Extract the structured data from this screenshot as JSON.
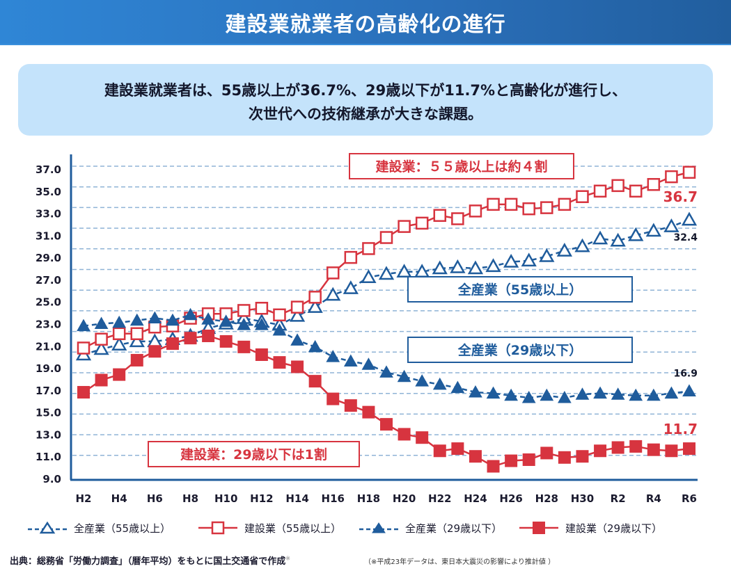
{
  "header": {
    "title": "建設業就業者の高齢化の進行"
  },
  "summary": {
    "line1": "建設業就業者は、55歳以上が36.7%、29歳以下が11.7%と高齢化が進行し、",
    "line2": "次世代への技術継承が大きな課題。"
  },
  "colors": {
    "red": "#d7343f",
    "blue": "#1f5c9c",
    "grid": "#8fb3d6",
    "header": "#2a72be",
    "info_bg": "#c4e3fb"
  },
  "chart_data": {
    "type": "line",
    "title": "建設業就業者の高齢化の進行",
    "xlabel": "",
    "ylabel": "",
    "ylim": [
      9.0,
      37.0
    ],
    "y_ticks": [
      "37.0",
      "35.0",
      "33.0",
      "31.0",
      "29.0",
      "27.0",
      "25.0",
      "23.0",
      "21.0",
      "19.0",
      "17.0",
      "15.0",
      "13.0",
      "11.0",
      "9.0"
    ],
    "grid": true,
    "legend_position": "bottom",
    "x": [
      "H2",
      "H3",
      "H4",
      "H5",
      "H6",
      "H7",
      "H8",
      "H9",
      "H10",
      "H11",
      "H12",
      "H13",
      "H14",
      "H15",
      "H16",
      "H17",
      "H18",
      "H19",
      "H20",
      "H21",
      "H22",
      "H23",
      "H24",
      "H25",
      "H26",
      "H27",
      "H28",
      "H29",
      "H30",
      "R1",
      "R2",
      "R3",
      "R4",
      "R5",
      "R6"
    ],
    "x_tick_labels": [
      "H2",
      "H4",
      "H6",
      "H8",
      "H10",
      "H12",
      "H14",
      "H16",
      "H18",
      "H20",
      "H22",
      "H24",
      "H26",
      "H28",
      "H30",
      "R2",
      "R4",
      "R6"
    ],
    "series": [
      {
        "name": "全産業（55歳以上）",
        "style": "dashed-open-triangle",
        "color": "#1f5c9c",
        "values": [
          20.2,
          20.7,
          21.1,
          21.4,
          21.4,
          21.6,
          21.9,
          22.6,
          23.0,
          23.5,
          23.2,
          22.9,
          23.7,
          24.5,
          25.6,
          26.2,
          27.2,
          27.5,
          27.7,
          27.7,
          28.0,
          28.1,
          28.0,
          28.2,
          28.6,
          28.7,
          29.1,
          29.6,
          30.0,
          30.7,
          30.5,
          31.0,
          31.4,
          31.8,
          32.4
        ],
        "end_label": "32.4"
      },
      {
        "name": "建設業（55歳以上）",
        "style": "solid-open-square",
        "color": "#d7343f",
        "values": [
          20.8,
          21.6,
          22.1,
          22.1,
          22.7,
          22.8,
          23.5,
          23.9,
          23.9,
          24.2,
          24.4,
          23.8,
          24.5,
          25.4,
          27.6,
          29.0,
          29.8,
          30.8,
          31.8,
          32.1,
          32.8,
          32.5,
          33.2,
          33.8,
          33.8,
          33.4,
          33.5,
          33.8,
          34.5,
          35.0,
          35.5,
          35.0,
          35.6,
          36.3,
          36.7
        ],
        "end_label": "36.7"
      },
      {
        "name": "全産業（29歳以下）",
        "style": "dashed-filled-triangle",
        "color": "#1f5c9c",
        "values": [
          22.8,
          23.0,
          23.1,
          23.3,
          23.5,
          23.3,
          23.8,
          23.4,
          23.2,
          22.9,
          22.9,
          22.4,
          21.5,
          20.9,
          20.0,
          19.6,
          19.3,
          18.6,
          18.2,
          17.8,
          17.5,
          17.2,
          16.8,
          16.7,
          16.5,
          16.3,
          16.5,
          16.3,
          16.6,
          16.7,
          16.6,
          16.5,
          16.5,
          16.7,
          16.9
        ],
        "end_label": "16.9"
      },
      {
        "name": "建設業（29歳以下）",
        "style": "solid-filled-square",
        "color": "#d7343f",
        "values": [
          16.8,
          17.9,
          18.4,
          19.7,
          20.5,
          21.2,
          21.7,
          21.9,
          21.4,
          20.9,
          20.2,
          19.5,
          19.1,
          17.8,
          16.2,
          15.6,
          15.0,
          13.9,
          13.0,
          12.7,
          11.5,
          11.7,
          11.0,
          10.1,
          10.6,
          10.7,
          11.3,
          10.9,
          11.0,
          11.5,
          11.8,
          11.9,
          11.6,
          11.5,
          11.7
        ],
        "end_label": "11.7"
      }
    ],
    "annotations": [
      {
        "id": "con55",
        "text": "建設業：５５歳以上は約４割",
        "color": "#d7343f"
      },
      {
        "id": "all55",
        "text": "全産業（55歳以上）",
        "color": "#1f5c9c"
      },
      {
        "id": "all29",
        "text": "全産業（29歳以下）",
        "color": "#1f5c9c"
      },
      {
        "id": "con29",
        "text": "建設業：29歳以下は1割",
        "color": "#d7343f"
      }
    ]
  },
  "legend": [
    {
      "label": "全産業（55歳以上）"
    },
    {
      "label": "建設業（55歳以上）"
    },
    {
      "label": "全産業（29歳以下）"
    },
    {
      "label": "建設業（29歳以下）"
    }
  ],
  "footer": {
    "source": "出典：総務省「労働力調査」（暦年平均）をもとに国土交通省で作成",
    "source_mark": "※",
    "note": "（※平成23年データは、東日本大震災の影響により推計値 ）"
  }
}
